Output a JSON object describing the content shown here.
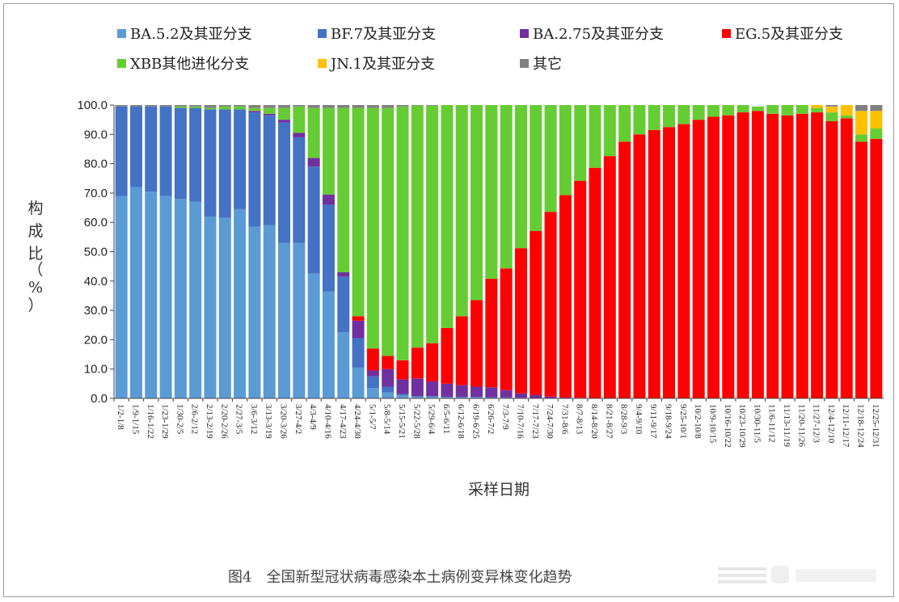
{
  "chart_data": {
    "type": "bar",
    "stacked": true,
    "ylabel_chars": [
      "构",
      "成",
      "比"
    ],
    "ylabel_unit": "（%）",
    "xlabel": "采样日期",
    "caption": "图4　全国新型冠状病毒感染本土病例变异株变化趋势",
    "ylim": [
      0,
      100
    ],
    "yticks": [
      "0.0",
      "10.0",
      "20.0",
      "30.0",
      "40.0",
      "50.0",
      "60.0",
      "70.0",
      "80.0",
      "90.0",
      "100.0"
    ],
    "grid": false,
    "legend_position": "top",
    "categories": [
      "1/2-1/8",
      "1/9-1/15",
      "1/16-1/22",
      "1/23-1/29",
      "1/30-2/5",
      "2/6-2/12",
      "2/13-2/19",
      "2/20-2/26",
      "2/27-3/5",
      "3/6-3/12",
      "3/13-3/19",
      "3/20-3/26",
      "3/27-4/2",
      "4/3-4/9",
      "4/10-4/16",
      "4/17-4/23",
      "4/24-4/30",
      "5/1-5/7",
      "5/8-5/14",
      "5/15-5/21",
      "5/22-5/28",
      "5/29-6/4",
      "6/5-6/11",
      "6/12-6/18",
      "6/19-6/25",
      "6/26-7/2",
      "7/3-7/9",
      "7/10-7/16",
      "7/17-7/23",
      "7/24-7/30",
      "7/31-8/6",
      "8/7-8/13",
      "8/14-8/20",
      "8/21-8/27",
      "8/28-9/3",
      "9/4-9/10",
      "9/11-9/17",
      "9/18-9/24",
      "9/25-10/1",
      "10/2-10/8",
      "10/9-10/15",
      "10/16-10/22",
      "10/23-10/29",
      "10/30-11/5",
      "11/6-11/12",
      "11/13-11/19",
      "11/20-11/26",
      "11/27-12/3",
      "12/4-12/10",
      "12/11-12/17",
      "12/18-12/24",
      "12/25-12/31"
    ],
    "series": [
      {
        "name": "BA.5.2及其亚分支",
        "color": "#5b9bd5",
        "values": [
          69,
          72,
          70.5,
          69,
          68,
          67,
          62,
          61.5,
          64.5,
          58.5,
          59,
          53,
          53,
          42.5,
          36.5,
          22.5,
          10.5,
          3.5,
          2,
          1,
          0.5,
          0.5,
          0.3,
          0.3,
          0.3,
          0.2,
          0.2,
          0.1,
          0.1,
          0.1,
          0,
          0,
          0,
          0,
          0,
          0,
          0,
          0,
          0,
          0,
          0,
          0,
          0,
          0,
          0,
          0,
          0,
          0,
          0,
          0,
          0,
          0
        ]
      },
      {
        "name": "BF.7及其亚分支",
        "color": "#4472c4",
        "values": [
          30.5,
          27.5,
          29,
          30.5,
          31,
          32,
          36.5,
          37,
          34,
          39,
          37.5,
          41,
          36,
          36.5,
          29.5,
          19,
          10,
          4,
          2,
          0.5,
          0.3,
          0.3,
          0.2,
          0.2,
          0.2,
          0.1,
          0.1,
          0.1,
          0,
          0,
          0,
          0,
          0,
          0,
          0,
          0,
          0,
          0,
          0,
          0,
          0,
          0,
          0,
          0,
          0,
          0,
          0,
          0,
          0,
          0,
          0,
          0
        ]
      },
      {
        "name": "BA.2.75及其亚分支",
        "color": "#7030a0",
        "values": [
          0,
          0,
          0,
          0,
          0,
          0,
          0,
          0,
          0,
          0.5,
          0.5,
          1,
          1.5,
          3,
          3.5,
          1.5,
          6,
          2,
          6,
          5,
          6,
          5,
          4.5,
          4,
          3.5,
          3.5,
          2.5,
          1.5,
          1,
          0.5,
          0.3,
          0.2,
          0.1,
          0.1,
          0,
          0,
          0,
          0,
          0,
          0,
          0,
          0,
          0,
          0,
          0,
          0,
          0,
          0,
          0,
          0,
          0,
          0
        ]
      },
      {
        "name": "EG.5及其亚分支",
        "color": "#ff0000",
        "values": [
          0,
          0,
          0,
          0,
          0,
          0,
          0,
          0,
          0,
          0,
          0,
          0,
          0,
          0,
          0,
          0,
          1.5,
          7.5,
          4.5,
          6.5,
          10.5,
          13,
          19,
          23.5,
          29.5,
          37,
          41.5,
          49.5,
          56,
          63,
          69,
          74,
          78.5,
          82.5,
          87.5,
          90,
          91.5,
          92.5,
          93.5,
          95,
          96,
          96.5,
          97.5,
          98,
          97,
          96.5,
          97,
          97.5,
          94.5,
          95.5,
          87.5,
          88.5
        ]
      },
      {
        "name": "XBB其他进化分支",
        "color": "#66cc33",
        "values": [
          0,
          0,
          0,
          0,
          0.5,
          0.5,
          0.5,
          1,
          1,
          1,
          2,
          4,
          9,
          17,
          29.5,
          56,
          71,
          82,
          84.5,
          86.5,
          82.5,
          81,
          76,
          72,
          66.5,
          59.2,
          55.7,
          48.8,
          42.9,
          36.4,
          30.7,
          25.8,
          21.4,
          17.4,
          12.5,
          10,
          8.5,
          7.5,
          6.5,
          5,
          4,
          3.5,
          2.5,
          1.5,
          3,
          3.5,
          3,
          1.5,
          3,
          1,
          2.5,
          3.5
        ]
      },
      {
        "name": "JN.1及其亚分支",
        "color": "#ffc000",
        "values": [
          0,
          0,
          0,
          0,
          0,
          0,
          0,
          0,
          0,
          0,
          0,
          0,
          0,
          0,
          0,
          0,
          0,
          0,
          0,
          0,
          0,
          0,
          0,
          0,
          0,
          0,
          0,
          0,
          0,
          0,
          0,
          0,
          0,
          0,
          0,
          0,
          0,
          0,
          0,
          0,
          0,
          0,
          0,
          0,
          0,
          0,
          0,
          1,
          2,
          3.5,
          8,
          6
        ]
      },
      {
        "name": "其它",
        "color": "#808080",
        "values": [
          0.5,
          0.5,
          0.5,
          0.5,
          0.5,
          0.5,
          1,
          0.5,
          0.5,
          1,
          1,
          1,
          0.5,
          1,
          1,
          1,
          1,
          1,
          1,
          0.5,
          0.2,
          0.2,
          0,
          0,
          0,
          0,
          0,
          0,
          0,
          0,
          0,
          0,
          0,
          0,
          0,
          0,
          0,
          0,
          0,
          0,
          0,
          0,
          0,
          0,
          0,
          0,
          0,
          0,
          0.5,
          0,
          2,
          2
        ]
      }
    ]
  }
}
